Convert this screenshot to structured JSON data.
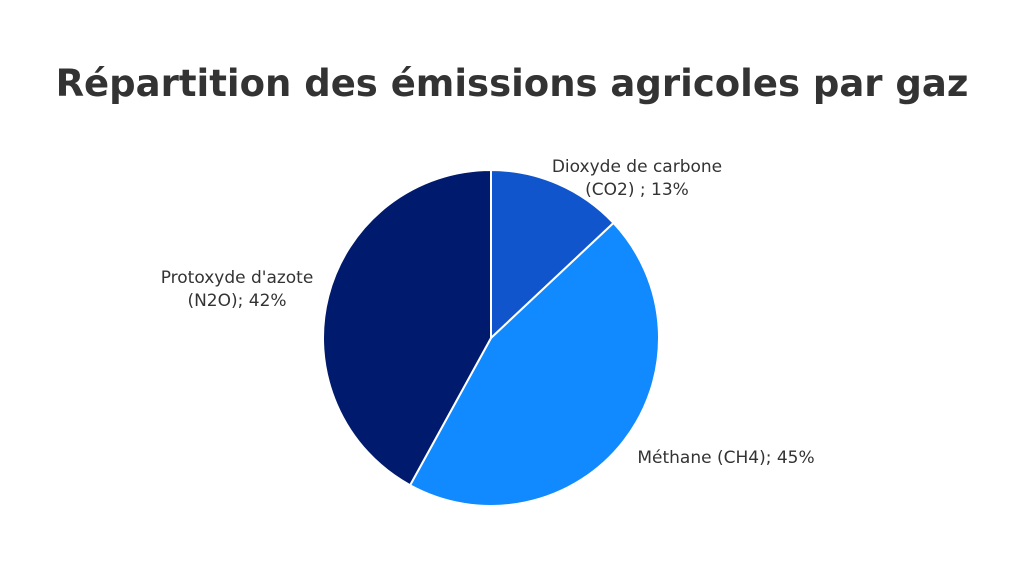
{
  "chart_data": {
    "type": "pie",
    "title": "Répartition des émissions agricoles par gaz",
    "slices": [
      {
        "label": "Dioxyde de carbone (CO2) ; 13%",
        "label_lines": [
          "Dioxyde de carbone",
          "(CO2) ; 13%"
        ],
        "value": 13,
        "color": "#1155CC"
      },
      {
        "label": "Méthane (CH4); 45%",
        "label_lines": [
          "Méthane (CH4); 45%"
        ],
        "value": 45,
        "color": "#118AFF"
      },
      {
        "label": "Protoxyde d'azote (N2O); 42%",
        "label_lines": [
          "Protoxyde d'azote",
          "(N2O); 42%"
        ],
        "value": 42,
        "color": "#001A6E"
      }
    ],
    "start_angle": "12 o'clock",
    "direction": "clockwise",
    "slice_border_color": "#FFFFFF",
    "legend": "none"
  }
}
